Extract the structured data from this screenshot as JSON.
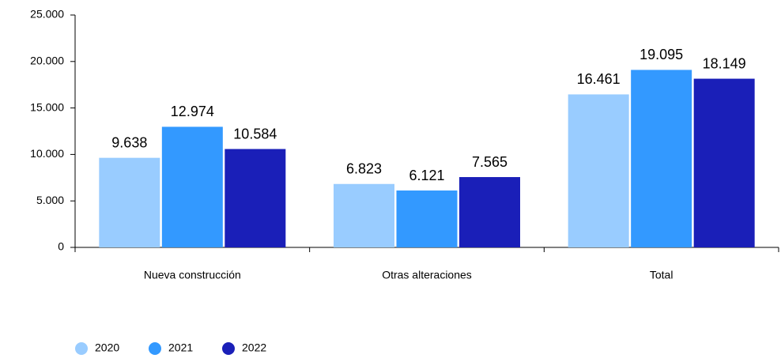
{
  "chart_data": {
    "type": "bar",
    "categories": [
      "Nueva construcción",
      "Otras alteraciones",
      "Total"
    ],
    "series": [
      {
        "name": "2020",
        "color": "#99ccff",
        "values": [
          9638,
          6823,
          16461
        ],
        "value_labels": [
          "9.638",
          "6.823",
          "16.461"
        ]
      },
      {
        "name": "2021",
        "color": "#3399ff",
        "values": [
          12974,
          6121,
          19095
        ],
        "value_labels": [
          "12.974",
          "6.121",
          "19.095"
        ]
      },
      {
        "name": "2022",
        "color": "#1a1fb8",
        "values": [
          10584,
          7565,
          18149
        ],
        "value_labels": [
          "10.584",
          "7.565",
          "18.149"
        ]
      }
    ],
    "ylim": [
      0,
      25000
    ],
    "yticks": [
      0,
      {
        "value": 5000,
        "label": "5.000"
      },
      {
        "value": 10000,
        "label": "10.000"
      },
      {
        "value": 15000,
        "label": "15.000"
      },
      {
        "value": 20000,
        "label": "20.000"
      },
      {
        "value": 25000,
        "label": "25.000"
      }
    ],
    "grid": false,
    "legend": "bottom-left"
  }
}
